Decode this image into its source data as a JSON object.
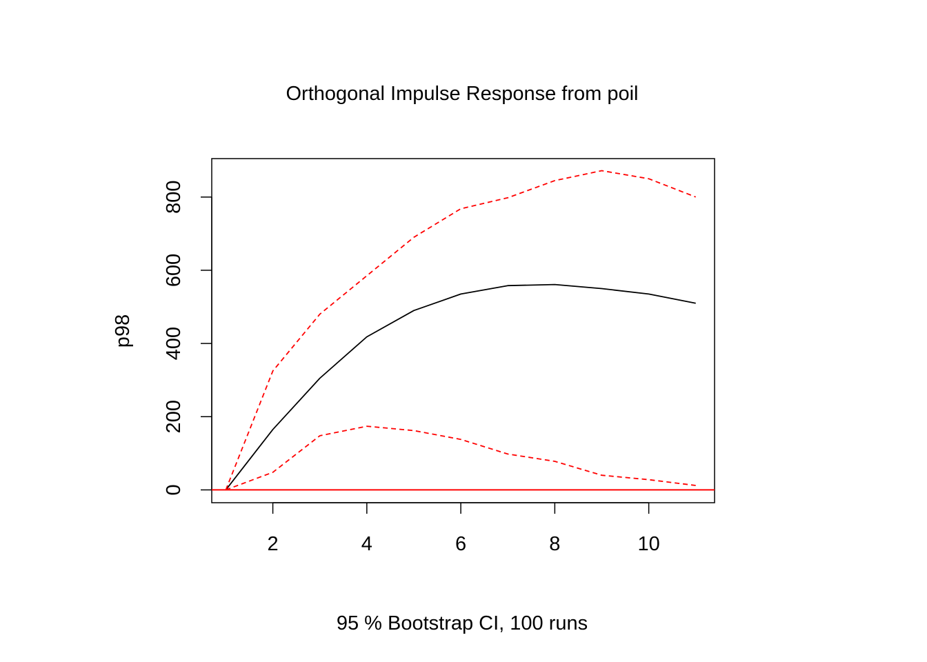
{
  "chart_data": {
    "type": "line",
    "title": "Orthogonal Impulse Response from poil",
    "xlabel": "95 % Bootstrap CI,  100 runs",
    "ylabel": "p98",
    "xlim": [
      0.7,
      11.4
    ],
    "ylim": [
      -35,
      905
    ],
    "x_ticks": [
      2,
      4,
      6,
      8,
      10
    ],
    "x_tick_labels": [
      "2",
      "4",
      "6",
      "8",
      "10"
    ],
    "y_ticks": [
      0,
      200,
      400,
      600,
      800
    ],
    "y_tick_labels": [
      "0",
      "200",
      "400",
      "600",
      "800"
    ],
    "x": [
      1,
      2,
      3,
      4,
      5,
      6,
      7,
      8,
      9,
      10,
      11
    ],
    "grid": false,
    "legend": "none",
    "series": [
      {
        "values": [
          0,
          165,
          305,
          418,
          490,
          535,
          558,
          561,
          550,
          535,
          510
        ],
        "color": "#000000",
        "style": "solid"
      },
      {
        "values": [
          0,
          325,
          480,
          585,
          690,
          768,
          798,
          845,
          872,
          850,
          800
        ],
        "color": "#ff0000",
        "style": "dashed"
      },
      {
        "values": [
          0,
          48,
          148,
          174,
          162,
          138,
          98,
          78,
          40,
          28,
          12
        ],
        "color": "#ff0000",
        "style": "dashed"
      }
    ],
    "reference_line": {
      "y": 0,
      "color": "#ff0000"
    }
  }
}
